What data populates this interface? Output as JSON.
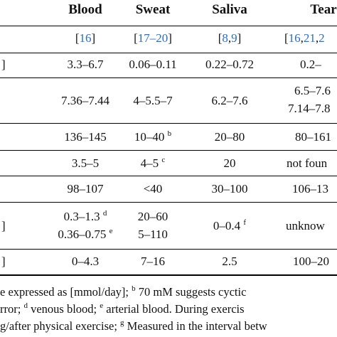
{
  "header": {
    "columns": [
      "Blood",
      "Sweat",
      "Saliva",
      "Tear"
    ]
  },
  "references": {
    "blood": [
      "16"
    ],
    "sweat": [
      "17–20"
    ],
    "saliva": [
      "8",
      "9"
    ],
    "tear": [
      "16",
      "21",
      "2"
    ]
  },
  "stubs": [
    "]",
    "]",
    "]"
  ],
  "rows": [
    {
      "blood": [
        "3.3–6.7"
      ],
      "sweat": [
        "0.06–0.11"
      ],
      "saliva": [
        "0.22–0.72"
      ],
      "tear": [
        "0.2–"
      ]
    },
    {
      "blood": [
        "7.36–7.44"
      ],
      "sweat": [
        "4–5.5–7"
      ],
      "saliva": [
        "6.2–7.6"
      ],
      "tear": [
        "6.5–7.6",
        "7.14–7.8"
      ]
    },
    {
      "blood": [
        "136–145"
      ],
      "sweat": [
        "10–40"
      ],
      "sweat_sup": "b",
      "saliva": [
        "20–80"
      ],
      "tear": [
        "80–161"
      ]
    },
    {
      "blood": [
        "3.5–5"
      ],
      "sweat": [
        "4–5"
      ],
      "sweat_sup": "c",
      "saliva": [
        "20"
      ],
      "tear": [
        "not foun"
      ]
    },
    {
      "blood": [
        "98–107"
      ],
      "sweat": [
        "<40"
      ],
      "saliva": [
        "30–100"
      ],
      "tear": [
        "106–13"
      ]
    },
    {
      "blood": [
        "0.3–1.3",
        "0.36–0.75"
      ],
      "blood_sup": [
        "d",
        "e"
      ],
      "sweat": [
        "20–60",
        "5–110"
      ],
      "saliva": [
        "0–0.4"
      ],
      "saliva_sup": "f",
      "tear": [
        "unknow"
      ]
    },
    {
      "blood": [
        "0–4.3"
      ],
      "sweat": [
        "7–16"
      ],
      "saliva": [
        "2.5"
      ],
      "tear": [
        "100–20"
      ]
    }
  ],
  "footnotes": {
    "line1_a": "e expressed as [mmol/day];",
    "line1_b_sup": "b",
    "line1_b": "70 mM suggests cyctic",
    "line2_a": "rror;",
    "line2_d_sup": "d",
    "line2_d": "venous blood;",
    "line2_e_sup": "e",
    "line2_e": "arterial blood. During exercis",
    "line3_a": "g/after physical exercise;",
    "line3_g_sup": "g",
    "line3_g": "Measured in the interval betw"
  }
}
